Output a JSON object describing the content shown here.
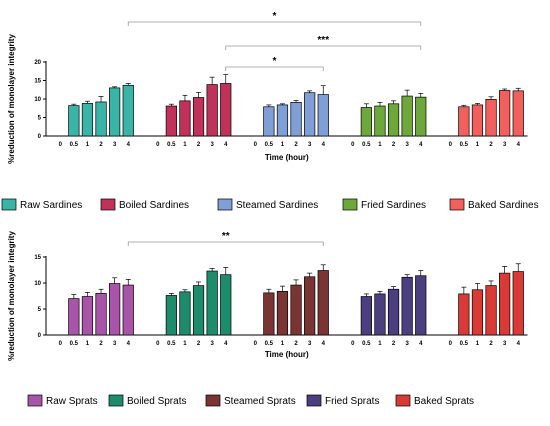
{
  "chart_data": [
    {
      "type": "bar",
      "ylabel": "%reduction of monolayer integrity",
      "xlabel": "Time (hour)",
      "ylim": [
        0,
        20
      ],
      "yticks": [
        0,
        5,
        10,
        15,
        20
      ],
      "categories": [
        "0",
        "0.5",
        "1",
        "2",
        "3",
        "4"
      ],
      "series": [
        {
          "name": "Raw Sardines",
          "color": "#3bb4a8",
          "values": [
            0,
            8.2,
            8.8,
            9.2,
            13.0,
            13.7
          ],
          "errors": [
            0,
            0.4,
            0.6,
            1.5,
            0.3,
            0.5
          ]
        },
        {
          "name": "Boiled Sardines",
          "color": "#c0325a",
          "values": [
            0,
            8.1,
            9.5,
            10.4,
            13.9,
            14.2
          ],
          "errors": [
            0,
            0.5,
            1.5,
            1.4,
            2.0,
            2.4
          ]
        },
        {
          "name": "Steamed Sardines",
          "color": "#7f9fd6",
          "values": [
            0,
            7.9,
            8.4,
            9.1,
            11.7,
            11.2
          ],
          "errors": [
            0,
            0.5,
            0.3,
            0.5,
            0.5,
            2.4
          ]
        },
        {
          "name": "Fried Sardines",
          "color": "#6ea83a",
          "values": [
            0,
            7.7,
            8.1,
            8.7,
            10.8,
            10.5
          ],
          "errors": [
            0,
            1.0,
            1.0,
            0.8,
            1.6,
            1.0
          ]
        },
        {
          "name": "Baked Sardines",
          "color": "#f2605e",
          "values": [
            0,
            7.9,
            8.4,
            9.9,
            12.3,
            12.2
          ],
          "errors": [
            0,
            0.4,
            0.4,
            0.7,
            0.4,
            0.7
          ]
        }
      ],
      "significance": [
        {
          "label": "*",
          "from_series": 0,
          "to_series": 3
        },
        {
          "label": "***",
          "from_series": 1,
          "to_series": 3
        },
        {
          "label": "*",
          "from_series": 1,
          "to_series": 2
        }
      ],
      "legend_position": "bottom"
    },
    {
      "type": "bar",
      "ylabel": "%reduction of monolayer integrity",
      "xlabel": "Time (hour)",
      "ylim": [
        0,
        15
      ],
      "yticks": [
        0,
        5,
        10,
        15
      ],
      "categories": [
        "0",
        "0.5",
        "1",
        "2",
        "3",
        "4"
      ],
      "series": [
        {
          "name": "Raw Sprats",
          "color": "#a854a8",
          "values": [
            0,
            7.0,
            7.4,
            8.0,
            9.9,
            9.6
          ],
          "errors": [
            0,
            0.8,
            0.8,
            0.8,
            1.1,
            1.1
          ]
        },
        {
          "name": "Boiled Sprats",
          "color": "#1d8c6a",
          "values": [
            0,
            7.6,
            8.3,
            9.5,
            12.3,
            11.6
          ],
          "errors": [
            0,
            0.4,
            0.4,
            0.7,
            0.5,
            1.4
          ]
        },
        {
          "name": "Steamed Sprats",
          "color": "#7a3434",
          "values": [
            0,
            8.1,
            8.4,
            9.6,
            11.2,
            12.4
          ],
          "errors": [
            0,
            0.7,
            1.0,
            1.0,
            0.7,
            1.1
          ]
        },
        {
          "name": "Fried Sprats",
          "color": "#4c3f80",
          "values": [
            0,
            7.4,
            7.9,
            8.8,
            11.1,
            11.4
          ],
          "errors": [
            0,
            0.5,
            0.5,
            0.5,
            0.5,
            1.0
          ]
        },
        {
          "name": "Baked Sprats",
          "color": "#d93a36",
          "values": [
            0,
            7.9,
            8.7,
            9.5,
            11.9,
            12.2
          ],
          "errors": [
            0,
            1.3,
            1.2,
            0.9,
            1.3,
            1.5
          ]
        }
      ],
      "significance": [
        {
          "label": "**",
          "from_series": 0,
          "to_series": 2
        }
      ],
      "legend_position": "bottom"
    }
  ]
}
